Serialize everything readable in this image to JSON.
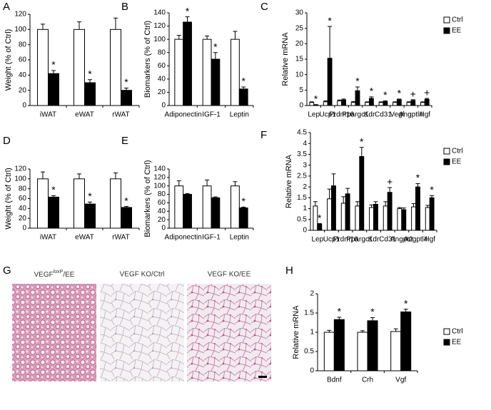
{
  "chart_data": [
    {
      "type": "bar",
      "panel": "A",
      "ylabel": "Weight (% of Ctrl)",
      "categories": [
        "iWAT",
        "eWAT",
        "rWAT"
      ],
      "series": [
        {
          "color": "#ffffff",
          "values": [
            100,
            100,
            100
          ],
          "errors": [
            7,
            10,
            15
          ]
        },
        {
          "color": "#000000",
          "values": [
            42,
            30,
            20
          ],
          "errors": [
            4,
            4,
            3
          ],
          "annotations": [
            "*",
            "*",
            "*"
          ]
        }
      ],
      "ylim": [
        0,
        120
      ],
      "yticks": [
        0,
        20,
        40,
        60,
        80,
        100,
        120
      ]
    },
    {
      "type": "bar",
      "panel": "B",
      "ylabel": "Biomarkers (% of Ctrl)",
      "categories": [
        "Adiponectin",
        "IGF-1",
        "Leptin"
      ],
      "series": [
        {
          "color": "#ffffff",
          "values": [
            100,
            100,
            100
          ],
          "errors": [
            6,
            5,
            12
          ]
        },
        {
          "color": "#000000",
          "values": [
            126,
            70,
            25
          ],
          "errors": [
            8,
            10,
            3
          ],
          "annotations": [
            "*",
            "*",
            "*"
          ]
        }
      ],
      "ylim": [
        0,
        140
      ],
      "yticks": [
        0,
        20,
        40,
        60,
        80,
        100,
        120,
        140
      ]
    },
    {
      "type": "bar",
      "panel": "C",
      "ylabel": "Relative mRNA",
      "categories": [
        "Lep",
        "Ucp1",
        "Prdm16",
        "Ppargc1",
        "Kdr",
        "Cd31",
        "Vegf",
        "Angptl4",
        "Hgf"
      ],
      "series": [
        {
          "name": "Ctrl",
          "color": "#ffffff",
          "values": [
            1.0,
            1.2,
            1.5,
            1.0,
            1.0,
            1.0,
            1.0,
            1.0,
            1.0
          ],
          "errors": [
            0.2,
            0.3,
            0.3,
            0.3,
            0.2,
            0.2,
            0.2,
            0.2,
            0.2
          ]
        },
        {
          "name": "EE",
          "color": "#000000",
          "values": [
            0.2,
            15.3,
            1.8,
            4.8,
            2.3,
            1.3,
            1.9,
            1.6,
            2.0
          ],
          "errors": [
            0.1,
            10.3,
            0.3,
            1.2,
            0.5,
            0.2,
            0.2,
            0.3,
            0.3
          ],
          "annotations": [
            "*",
            "*",
            null,
            "*",
            "*",
            "*",
            "*",
            "+",
            "+"
          ]
        }
      ],
      "ylim": [
        0,
        30
      ],
      "yticks": [
        0,
        5,
        10,
        15,
        20,
        25,
        30
      ],
      "legend": "top-right"
    },
    {
      "type": "bar",
      "panel": "D",
      "ylabel": "Weight (% of Ctrl)",
      "categories": [
        "iWAT",
        "eWAT",
        "rWAT"
      ],
      "series": [
        {
          "color": "#ffffff",
          "values": [
            100,
            100,
            100
          ],
          "errors": [
            14,
            10,
            12
          ]
        },
        {
          "color": "#000000",
          "values": [
            63,
            49,
            42
          ],
          "errors": [
            3,
            4,
            2
          ],
          "annotations": [
            "*",
            "*",
            "*"
          ]
        }
      ],
      "ylim": [
        0,
        120
      ],
      "yticks": [
        0,
        20,
        40,
        60,
        80,
        100,
        120
      ]
    },
    {
      "type": "bar",
      "panel": "E",
      "ylabel": "Biomarkers (% of Ctrl)",
      "categories": [
        "Adiponectin",
        "IGF-1",
        "Leptin"
      ],
      "series": [
        {
          "color": "#ffffff",
          "values": [
            100,
            100,
            100
          ],
          "errors": [
            12,
            14,
            10
          ]
        },
        {
          "color": "#000000",
          "values": [
            80,
            72,
            48
          ],
          "errors": [
            2,
            2,
            2
          ],
          "annotations": [
            null,
            null,
            "*"
          ]
        }
      ],
      "ylim": [
        0,
        140
      ],
      "yticks": [
        0,
        20,
        40,
        60,
        80,
        100,
        120,
        140
      ]
    },
    {
      "type": "bar",
      "panel": "F",
      "ylabel": "Relative mRNA",
      "categories": [
        "Lep",
        "Ucp1",
        "Prdm16",
        "Ppargc1",
        "Kdr",
        "Cd31",
        "Angpt2",
        "Angptl4",
        "Hgf"
      ],
      "series": [
        {
          "name": "Ctrl",
          "color": "#ffffff",
          "values": [
            1.12,
            1.45,
            1.25,
            1.12,
            1.05,
            1.12,
            1.0,
            1.08,
            1.05
          ],
          "errors": [
            0.2,
            0.45,
            0.3,
            0.2,
            0.12,
            0.2,
            0.05,
            0.15,
            0.1
          ]
        },
        {
          "name": "EE",
          "color": "#000000",
          "values": [
            0.28,
            2.05,
            1.68,
            3.4,
            1.2,
            1.75,
            0.95,
            2.0,
            1.5
          ],
          "errors": [
            0.03,
            0.55,
            0.25,
            0.42,
            0.12,
            0.22,
            0.08,
            0.15,
            0.1
          ],
          "annotations": [
            "*",
            null,
            null,
            "*",
            null,
            "+",
            null,
            "*",
            "*"
          ]
        }
      ],
      "ylim": [
        0,
        4.5
      ],
      "yticks": [
        0,
        0.5,
        1,
        1.5,
        2,
        2.5,
        3,
        3.5,
        4,
        4.5
      ],
      "legend": "top-right"
    },
    {
      "type": "bar",
      "panel": "H",
      "ylabel": "Relative mRNA",
      "categories": [
        "Bdnf",
        "Crh",
        "Vgf"
      ],
      "series": [
        {
          "name": "Ctrl",
          "color": "#ffffff",
          "values": [
            1.0,
            1.0,
            1.02
          ],
          "errors": [
            0.05,
            0.04,
            0.07
          ]
        },
        {
          "name": "EE",
          "color": "#000000",
          "values": [
            1.33,
            1.3,
            1.53
          ],
          "errors": [
            0.06,
            0.08,
            0.07
          ],
          "annotations": [
            "*",
            "*",
            "*"
          ]
        }
      ],
      "ylim": [
        0,
        2
      ],
      "yticks": [
        0,
        0.5,
        1,
        1.5,
        2
      ],
      "legend": "top-right"
    }
  ],
  "panel_g": {
    "panel": "G",
    "images": [
      {
        "label": "VEGF",
        "sup": "loxP",
        "suffix": "/EE"
      },
      {
        "label": "VEGF KO/Ctrl"
      },
      {
        "label": "VEGF KO/EE"
      }
    ]
  }
}
